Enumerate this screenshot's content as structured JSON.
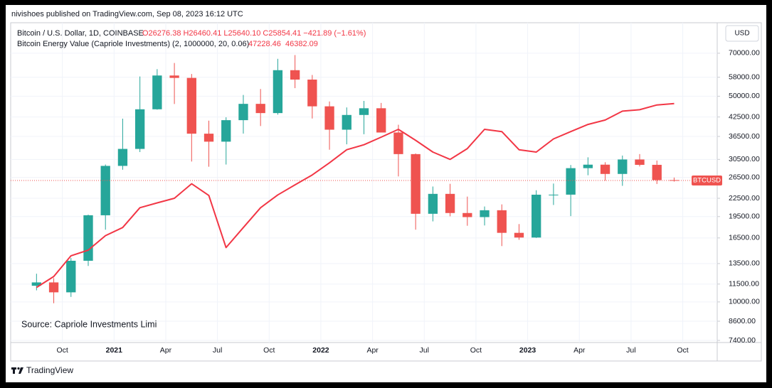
{
  "header": "nivishoes published on TradingView.com, Sep 08, 2023 16:12 UTC",
  "currency": "USD",
  "footer": "TradingView",
  "chart_data": {
    "type": "candlestick",
    "symbol": "Bitcoin / U.S. Dollar, 1D, COINBASE",
    "ohlc_label": "O26276.38 H26460.41 L25640.10 C25854.41 −421.89 (−1.61%)",
    "indicator_values": [
      "47228.46",
      "46382.09"
    ],
    "annotation": "Source: Capriole Investments Limi",
    "price_label": "BTCUSD",
    "last_price": 25854.41,
    "log_scale": true,
    "grid": true,
    "up_color": "#26a69a",
    "down_color": "#ef5350",
    "x": [
      "2020-08",
      "2020-09",
      "2020-10",
      "2020-11",
      "2020-12",
      "2021-01",
      "2021-02",
      "2021-03",
      "2021-04",
      "2021-05",
      "2021-06",
      "2021-07",
      "2021-08",
      "2021-09",
      "2021-10",
      "2021-11",
      "2021-12",
      "2022-01",
      "2022-02",
      "2022-03",
      "2022-04",
      "2022-05",
      "2022-06",
      "2022-07",
      "2022-08",
      "2022-09",
      "2022-10",
      "2022-11",
      "2022-12",
      "2023-01",
      "2023-02",
      "2023-03",
      "2023-04",
      "2023-05",
      "2023-06",
      "2023-07",
      "2023-08",
      "2023-09"
    ],
    "open": [
      11350,
      11650,
      10780,
      13800,
      19700,
      28990,
      33110,
      45140,
      58800,
      57700,
      37300,
      35040,
      41460,
      47100,
      43820,
      61300,
      56950,
      46200,
      38480,
      43180,
      45510,
      37640,
      31790,
      19930,
      23290,
      20050,
      19420,
      20490,
      17170,
      16550,
      23140,
      23150,
      28480,
      29270,
      27220,
      30480,
      29230,
      25940
    ],
    "high": [
      12470,
      12050,
      14100,
      19800,
      29300,
      41950,
      58350,
      61800,
      64850,
      59500,
      41300,
      42400,
      50500,
      52900,
      67000,
      69000,
      59050,
      47990,
      45800,
      48200,
      47440,
      40000,
      31950,
      24670,
      25200,
      22800,
      21100,
      21450,
      18390,
      23960,
      25250,
      29190,
      31000,
      29830,
      31430,
      31800,
      30230,
      26460
    ],
    "low": [
      10950,
      9900,
      10400,
      13250,
      17600,
      28130,
      32300,
      45000,
      47050,
      30000,
      28800,
      29300,
      37330,
      39600,
      43280,
      53260,
      42000,
      32900,
      34320,
      37150,
      37700,
      26700,
      17600,
      18780,
      19540,
      18150,
      18190,
      15480,
      16260,
      16500,
      21350,
      19570,
      26940,
      25810,
      24800,
      28860,
      25160,
      25640
    ],
    "close": [
      11650,
      10780,
      13800,
      19700,
      28990,
      33110,
      45140,
      58800,
      57700,
      37300,
      35040,
      41460,
      47100,
      43820,
      61300,
      56950,
      46200,
      38480,
      43180,
      45510,
      37640,
      31790,
      19930,
      23290,
      20050,
      19420,
      20490,
      17170,
      16550,
      23140,
      23150,
      28480,
      29270,
      27220,
      30480,
      29230,
      25940,
      25854
    ],
    "series": [
      {
        "name": "Bitcoin Energy Value (Capriole Investments) (2, 1000000, 20, 0.06)",
        "color": "#f23645",
        "values": [
          11200,
          12200,
          14350,
          15000,
          16800,
          17900,
          20900,
          21700,
          22500,
          25200,
          23000,
          15300,
          17900,
          20900,
          23100,
          25000,
          27000,
          29700,
          32900,
          34200,
          36300,
          38600,
          35400,
          32300,
          30500,
          33200,
          38600,
          37900,
          32900,
          32300,
          35800,
          37900,
          40100,
          41500,
          44500,
          45000,
          46700,
          47228
        ]
      }
    ],
    "xlim": [
      "2020-07",
      "2023-12"
    ],
    "xticks": [
      {
        "value": "2020-10",
        "label": "Oct"
      },
      {
        "value": "2021-01",
        "label": "2021"
      },
      {
        "value": "2021-04",
        "label": "Apr"
      },
      {
        "value": "2021-07",
        "label": "Jul"
      },
      {
        "value": "2021-10",
        "label": "Oct"
      },
      {
        "value": "2022-01",
        "label": "2022"
      },
      {
        "value": "2022-04",
        "label": "Apr"
      },
      {
        "value": "2022-07",
        "label": "Jul"
      },
      {
        "value": "2022-10",
        "label": "Oct"
      },
      {
        "value": "2023-01",
        "label": "2023"
      },
      {
        "value": "2023-04",
        "label": "Apr"
      },
      {
        "value": "2023-07",
        "label": "Jul"
      },
      {
        "value": "2023-10",
        "label": "Oct"
      }
    ],
    "ylim": [
      7320,
      75200
    ],
    "yticks": [
      {
        "value": 70000,
        "label": "70000.00"
      },
      {
        "value": 58000,
        "label": "58000.00"
      },
      {
        "value": 50000,
        "label": "50000.00"
      },
      {
        "value": 42500,
        "label": "42500.00"
      },
      {
        "value": 36500,
        "label": "36500.00"
      },
      {
        "value": 30500,
        "label": "30500.00"
      },
      {
        "value": 26500,
        "label": "26500.00"
      },
      {
        "value": 22500,
        "label": "22500.00"
      },
      {
        "value": 19500,
        "label": "19500.00"
      },
      {
        "value": 16500,
        "label": "16500.00"
      },
      {
        "value": 13500,
        "label": "13500.00"
      },
      {
        "value": 11500,
        "label": "11500.00"
      },
      {
        "value": 10000,
        "label": "10000.00"
      },
      {
        "value": 8600,
        "label": "8600.00"
      },
      {
        "value": 7400,
        "label": "7400.00"
      }
    ]
  }
}
